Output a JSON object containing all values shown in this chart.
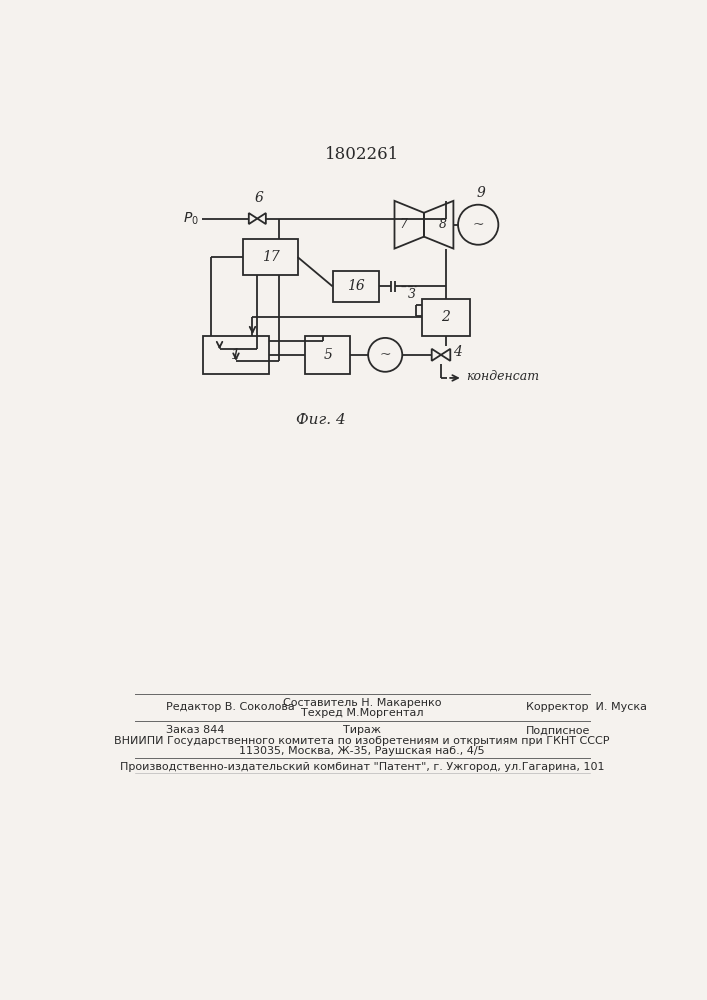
{
  "title": "1802261",
  "bg_color": "#f5f2ee",
  "line_color": "#2a2a2a",
  "caption": "Фиг. 4",
  "footer": {
    "editor": "Редактор В. Соколова",
    "compiler_top": "Составитель Н. Макаренко",
    "techred": "Техред М.Моргентал",
    "corrector": "Корректор  И. Муска",
    "order": "Заказ 844",
    "tirazh": "Тираж",
    "podpisnoe": "Подписное",
    "vniiipi1": "ВНИИПИ Государственного комитета по изобретениям и открытиям при ГКНТ СССР",
    "vniiipi2": "113035, Москва, Ж-35, Раушская наб., 4/5",
    "proizvod": "Производственно-издательский комбинат \"Патент\", г. Ужгород, ул.Гагарина, 101"
  }
}
